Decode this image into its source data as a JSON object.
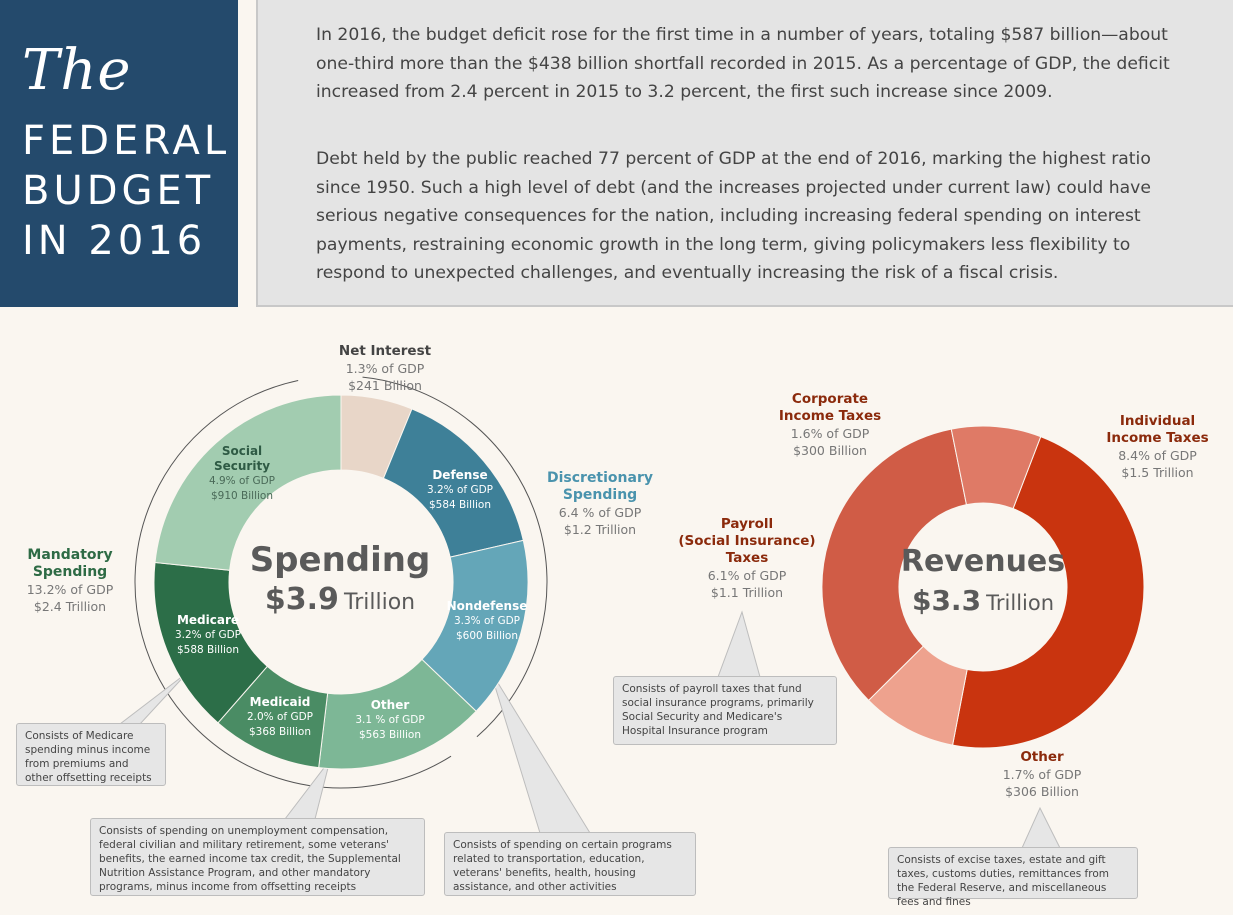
{
  "title": {
    "the": "The",
    "line1": "FEDERAL",
    "line2": "BUDGET",
    "line3": "IN 2016"
  },
  "intro": {
    "p1": "In 2016, the budget deficit rose for the first time in a number of years, totaling $587 billion—about one-third more than the $438 billion shortfall recorded in 2015. As a percentage of GDP, the deficit increased from 2.4 percent in 2015 to 3.2 percent, the first such increase since 2009.",
    "p2": "Debt held by the public reached 77 percent of GDP at the end of 2016, marking the highest ratio since 1950. Such a high level of debt (and the increases projected under current law) could have serious negative consequences for the nation, including increasing federal spending on interest payments, restraining economic growth in the long term, giving policymakers less flexibility to respond to unexpected challenges, and eventually increasing the risk of a fiscal crisis."
  },
  "chart_data": [
    {
      "type": "pie",
      "title": "Spending",
      "total": "$3.9",
      "total_unit": "Trillion",
      "slices": [
        {
          "name": "Net Interest",
          "pct_gdp": 1.3,
          "pct_label": "1.3% of GDP",
          "amount": "$241 Billion",
          "color": "#e8d6c8"
        },
        {
          "name": "Defense",
          "pct_gdp": 3.2,
          "pct_label": "3.2% of GDP",
          "amount": "$584 Billion",
          "color": "#3e8098"
        },
        {
          "name": "Nondefense",
          "pct_gdp": 3.3,
          "pct_label": "3.3% of GDP",
          "amount": "$600 Billion",
          "color": "#64a6b8"
        },
        {
          "name": "Other",
          "pct_gdp": 3.1,
          "pct_label": "3.1 % of GDP",
          "amount": "$563 Billion",
          "color": "#7db796"
        },
        {
          "name": "Medicaid",
          "pct_gdp": 2.0,
          "pct_label": "2.0% of GDP",
          "amount": "$368 Billion",
          "color": "#4a8c64"
        },
        {
          "name": "Medicare",
          "pct_gdp": 3.2,
          "pct_label": "3.2% of GDP",
          "amount": "$588 Billion",
          "color": "#2c6e48"
        },
        {
          "name": "Social Security",
          "pct_gdp": 4.9,
          "pct_label": "4.9% of GDP",
          "amount": "$910 Billion",
          "color": "#a2ccb0"
        }
      ],
      "groups": [
        {
          "name": "Discretionary Spending",
          "pct_label": "6.4 % of GDP",
          "amount": "$1.2 Trillion",
          "color": "#4a93ad"
        },
        {
          "name": "Mandatory Spending",
          "pct_label": "13.2% of GDP",
          "amount": "$2.4 Trillion",
          "color": "#2e6b45"
        }
      ]
    },
    {
      "type": "pie",
      "title": "Revenues",
      "total": "$3.3",
      "total_unit": "Trillion",
      "slices": [
        {
          "name": "Individual Income Taxes",
          "pct_gdp": 8.4,
          "pct_label": "8.4% of GDP",
          "amount": "$1.5 Trillion",
          "color": "#c9340f"
        },
        {
          "name": "Other",
          "pct_gdp": 1.7,
          "pct_label": "1.7% of GDP",
          "amount": "$306 Billion",
          "color": "#eea28e"
        },
        {
          "name": "Payroll (Social Insurance) Taxes",
          "pct_gdp": 6.1,
          "pct_label": "6.1% of GDP",
          "amount": "$1.1 Trillion",
          "color": "#d05c46"
        },
        {
          "name": "Corporate Income Taxes",
          "pct_gdp": 1.6,
          "pct_label": "1.6% of GDP",
          "amount": "$300 Billion",
          "color": "#df7a66"
        }
      ]
    }
  ],
  "labels": {
    "net_interest": {
      "t": "Net Interest",
      "s1": "1.3% of GDP",
      "s2": "$241 Billion"
    },
    "discretionary": {
      "t1": "Discretionary",
      "t2": "Spending",
      "s1": "6.4 % of GDP",
      "s2": "$1.2 Trillion"
    },
    "mandatory": {
      "t1": "Mandatory",
      "t2": "Spending",
      "s1": "13.2% of GDP",
      "s2": "$2.4 Trillion"
    },
    "social_security": {
      "t1": "Social",
      "t2": "Security",
      "s1": "4.9% of GDP",
      "s2": "$910 Billion"
    },
    "defense": {
      "t": "Defense",
      "s1": "3.2% of GDP",
      "s2": "$584 Billion"
    },
    "nondefense": {
      "t": "Nondefense",
      "s1": "3.3% of GDP",
      "s2": "$600 Billion"
    },
    "medicare": {
      "t": "Medicare",
      "s1": "3.2% of GDP",
      "s2": "$588 Billion"
    },
    "medicaid": {
      "t": "Medicaid",
      "s1": "2.0% of GDP",
      "s2": "$368 Billion"
    },
    "other_spending": {
      "t": "Other",
      "s1": "3.1 % of GDP",
      "s2": "$563 Billion"
    },
    "spending_center": {
      "t": "Spending",
      "amount": "$3.9",
      "unit": "Trillion"
    },
    "revenues_center": {
      "t": "Revenues",
      "amount": "$3.3",
      "unit": "Trillion"
    },
    "corporate": {
      "t1": "Corporate",
      "t2": "Income Taxes",
      "s1": "1.6% of GDP",
      "s2": "$300 Billion"
    },
    "individual": {
      "t1": "Individual",
      "t2": "Income Taxes",
      "s1": "8.4% of GDP",
      "s2": "$1.5 Trillion"
    },
    "payroll": {
      "t1": "Payroll",
      "t2": "(Social Insurance)",
      "t3": "Taxes",
      "s1": "6.1% of GDP",
      "s2": "$1.1 Trillion"
    },
    "other_revenue": {
      "t": "Other",
      "s1": "1.7% of GDP",
      "s2": "$306 Billion"
    }
  },
  "callouts": {
    "medicare": "Consists of Medicare spending minus income from premiums and other offsetting receipts",
    "other_spending": "Consists of spending on unemployment compensation, federal civilian and military retirement, some veterans' benefits, the earned income tax credit, the Supplemental Nutrition Assistance Program, and other mandatory programs, minus income from offsetting receipts",
    "nondefense": "Consists of spending on certain programs related to transportation, education, veterans' benefits, health, housing assistance, and other activities",
    "payroll": "Consists of payroll taxes that fund social insurance programs, primarily Social Security and Medicare's Hospital Insurance program",
    "other_revenue": "Consists of excise taxes, estate and gift taxes, customs duties, remittances from the Federal Reserve, and miscellaneous fees and fines"
  },
  "colors": {
    "title_bg": "#244a6c",
    "intro_bg": "#e4e4e4",
    "page_bg": "#faf6f0",
    "discretionary": "#4a93ad",
    "mandatory": "#2e6b45",
    "revenue_label": "#8b2a0c",
    "spending_label": "#2e5a44"
  }
}
